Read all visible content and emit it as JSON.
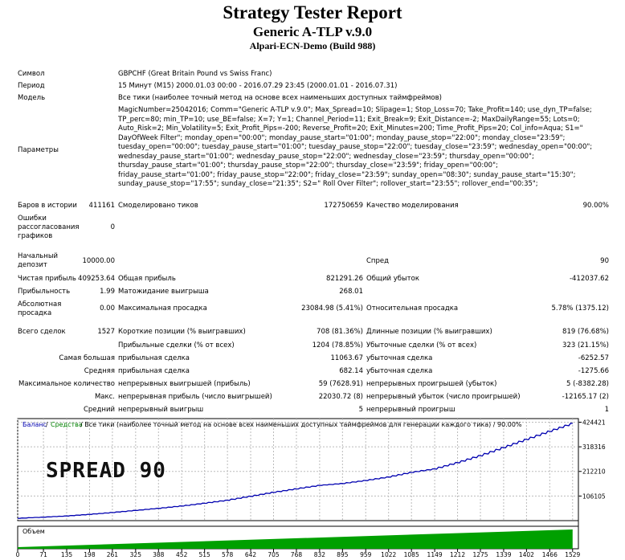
{
  "header": {
    "title": "Strategy Tester Report",
    "subtitle": "Generic A-TLP v.9.0",
    "server": "Alpari-ECN-Demo (Build 988)"
  },
  "info": {
    "symbol_label": "Символ",
    "symbol_value": "GBPCHF (Great Britain Pound vs Swiss Franc)",
    "period_label": "Период",
    "period_value": "15 Минут (M15) 2000.01.03 00:00 - 2016.07.29 23:45 (2000.01.01 - 2016.07.31)",
    "model_label": "Модель",
    "model_value": "Все тики (наиболее точный метод на основе всех наименьших доступных таймфреймов)",
    "params_label": "Параметры",
    "params_value": "MagicNumber=25042016; Comm=\"Generic A-TLP v.9.0\"; Max_Spread=10; Slipage=1; Stop_Loss=70; Take_Profit=140; use_dyn_TP=false; TP_perc=80; min_TP=10; use_BE=false; X=7; Y=1; Channel_Period=11; Exit_Break=9; Exit_Distance=-2; MaxDailyRange=55; Lots=0; Auto_Risk=2; Min_Volatility=5; Exit_Profit_Pips=-200; Reverse_Profit=20; Exit_Minutes=200; Time_Profit_Pips=20; Col_info=Aqua; S1=\" DayOfWeek Filter\"; monday_open=\"00:00\"; monday_pause_start=\"01:00\"; monday_pause_stop=\"22:00\"; monday_close=\"23:59\"; tuesday_open=\"00:00\"; tuesday_pause_start=\"01:00\"; tuesday_pause_stop=\"22:00\"; tuesday_close=\"23:59\"; wednesday_open=\"00:00\"; wednesday_pause_start=\"01:00\"; wednesday_pause_stop=\"22:00\"; wednesday_close=\"23:59\"; thursday_open=\"00:00\"; thursday_pause_start=\"01:00\"; thursday_pause_stop=\"22:00\"; thursday_close=\"23:59\"; friday_open=\"00:00\"; friday_pause_start=\"01:00\"; friday_pause_stop=\"22:00\"; friday_close=\"23:59\"; sunday_open=\"08:30\"; sunday_pause_start=\"15:30\"; sunday_pause_stop=\"17:55\"; sunday_close=\"21:35\"; S2=\" Roll Over Filter\"; rollover_start=\"23:55\"; rollover_end=\"00:35\";"
  },
  "stats": {
    "bars_label": "Баров в истории",
    "bars_value": "411161",
    "ticks_label": "Смоделировано тиков",
    "ticks_value": "172750659",
    "quality_label": "Качество моделирования",
    "quality_value": "90.00%",
    "errors_label_1": "Ошибки",
    "errors_label_2": "рассогласования",
    "errors_label_3": "графиков",
    "errors_value": "0",
    "deposit_label_1": "Начальный",
    "deposit_label_2": "депозит",
    "deposit_value": "10000.00",
    "spread_label": "Спред",
    "spread_value": "90",
    "net_profit_label": "Чистая прибыль",
    "net_profit_value": "409253.64",
    "gross_profit_label": "Общая прибыль",
    "gross_profit_value": "821291.26",
    "gross_loss_label": "Общий убыток",
    "gross_loss_value": "-412037.62",
    "profit_factor_label": "Прибыльность",
    "profit_factor_value": "1.99",
    "expected_payoff_label": "Матожидание выигрыша",
    "expected_payoff_value": "268.01",
    "abs_dd_label_1": "Абсолютная",
    "abs_dd_label_2": "просадка",
    "abs_dd_value": "0.00",
    "max_dd_label": "Максимальная просадка",
    "max_dd_value": "23084.98 (5.41%)",
    "rel_dd_label": "Относительная просадка",
    "rel_dd_value": "5.78% (1375.12)",
    "total_trades_label": "Всего сделок",
    "total_trades_value": "1527",
    "short_label": "Короткие позиции (% выигравших)",
    "short_value": "708 (81.36%)",
    "long_label": "Длинные позиции (% выигравших)",
    "long_value": "819 (76.68%)",
    "profit_trades_label": "Прибыльные сделки (% от всех)",
    "profit_trades_value": "1204 (78.85%)",
    "loss_trades_label": "Убыточные сделки (% от всех)",
    "loss_trades_value": "323 (21.15%)",
    "largest_label": "Самая большая",
    "largest_profit_label": "прибыльная сделка",
    "largest_profit_value": "11063.67",
    "largest_loss_label": "убыточная сделка",
    "largest_loss_value": "-6252.57",
    "average_label": "Средняя",
    "average_profit_label": "прибыльная сделка",
    "average_profit_value": "682.14",
    "average_loss_label": "убыточная сделка",
    "average_loss_value": "-1275.66",
    "max_label": "Максимальное количество",
    "max_wins_label": "непрерывных выигрышей (прибыль)",
    "max_wins_value": "59 (7628.91)",
    "max_losses_label": "непрерывных проигрышей (убыток)",
    "max_losses_value": "5 (-8382.28)",
    "maximal_label": "Макс.",
    "maximal_wins_label": "непрерывная прибыль (число выигрышей)",
    "maximal_wins_value": "22030.72 (8)",
    "maximal_losses_label": "непрерывный убыток (число проигрышей)",
    "maximal_losses_value": "-12165.17 (2)",
    "avg_cons_label": "Средний",
    "avg_cons_wins_label": "непрерывный выигрыш",
    "avg_cons_wins_value": "5",
    "avg_cons_losses_label": "непрерывный проигрыш",
    "avg_cons_losses_value": "1"
  },
  "chart_data": {
    "type": "line",
    "legend_balance": "Баланс",
    "legend_sep": "/",
    "legend_equity": "Средства",
    "legend_rest": "/ Все тики (наиболее точный метод на основе всех наименьших доступных таймфреймов для генерации каждого тика) / 90.00%",
    "watermark": "SPREAD 90",
    "volume_label": "Объем",
    "y_ticks": [
      "424421",
      "318316",
      "212210",
      "106105"
    ],
    "ylim": [
      0,
      440000
    ],
    "x_ticks": [
      "0",
      "71",
      "135",
      "198",
      "261",
      "325",
      "388",
      "452",
      "515",
      "578",
      "642",
      "705",
      "768",
      "832",
      "895",
      "959",
      "1022",
      "1085",
      "1149",
      "1212",
      "1275",
      "1339",
      "1402",
      "1466",
      "1529"
    ],
    "xlim": [
      0,
      1545
    ],
    "balance_color": "#0000b0",
    "equity_color": "#008000",
    "volume_color": "#00a000",
    "series": [
      {
        "name": "Баланс",
        "x": [
          0,
          71,
          135,
          198,
          261,
          325,
          388,
          452,
          515,
          578,
          642,
          705,
          768,
          832,
          895,
          959,
          1022,
          1085,
          1149,
          1212,
          1275,
          1339,
          1402,
          1466,
          1529
        ],
        "values": [
          10000,
          15000,
          20000,
          27000,
          35000,
          44000,
          53000,
          63000,
          75000,
          88000,
          105000,
          122000,
          137000,
          152000,
          160000,
          173000,
          188000,
          208000,
          223000,
          250000,
          280000,
          315000,
          350000,
          385000,
          419000
        ]
      }
    ]
  }
}
